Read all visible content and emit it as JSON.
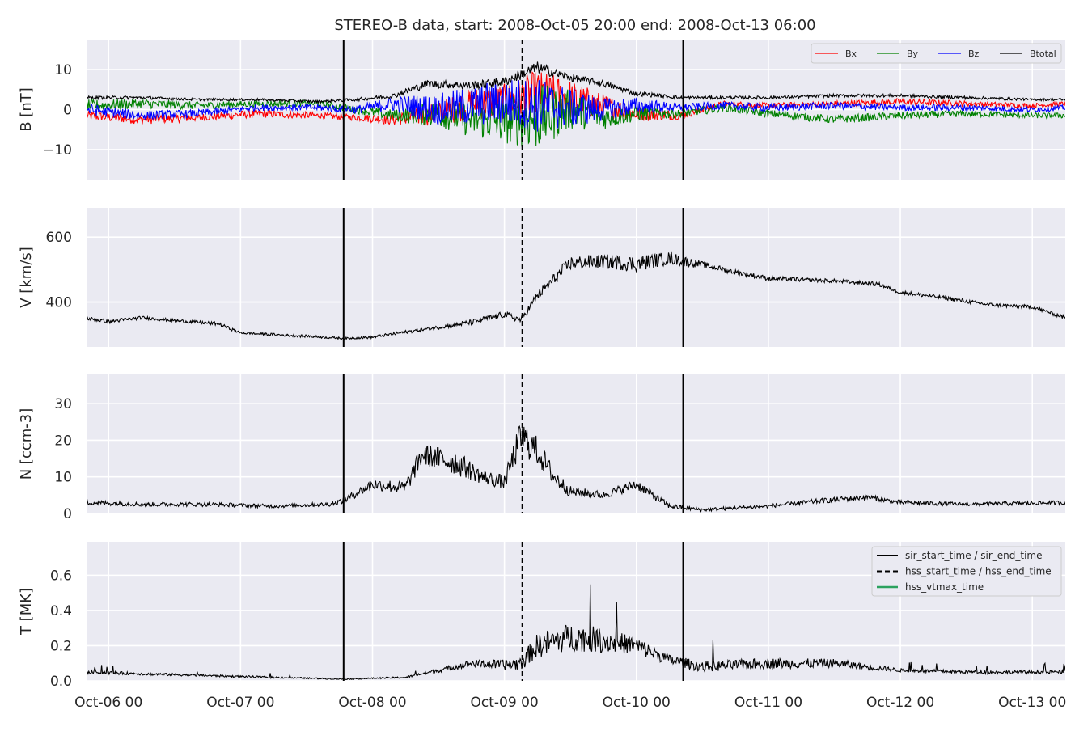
{
  "chart_data": {
    "type": "line",
    "title": "STEREO-B data, start: 2008-Oct-05 20:00  end: 2008-Oct-13 06:00",
    "x_range": [
      "2008-10-05 20:00",
      "2008-10-13 06:00"
    ],
    "x_ticks": [
      {
        "value": "2008-10-06 00:00",
        "label": "Oct-06 00"
      },
      {
        "value": "2008-10-07 00:00",
        "label": "Oct-07 00"
      },
      {
        "value": "2008-10-08 00:00",
        "label": "Oct-08 00"
      },
      {
        "value": "2008-10-09 00:00",
        "label": "Oct-09 00"
      },
      {
        "value": "2008-10-10 00:00",
        "label": "Oct-10 00"
      },
      {
        "value": "2008-10-11 00:00",
        "label": "Oct-11 00"
      },
      {
        "value": "2008-10-12 00:00",
        "label": "Oct-12 00"
      },
      {
        "value": "2008-10-13 00:00",
        "label": "Oct-13 00"
      }
    ],
    "event_lines": [
      {
        "name": "sir_start_time / sir_end_time",
        "style": "solid",
        "times": [
          "2008-10-07 18:45",
          "2008-10-10 08:30"
        ]
      },
      {
        "name": "hss_start_time / hss_end_time",
        "style": "dashed",
        "times": [
          "2008-10-09 03:15"
        ]
      },
      {
        "name": "hss_vtmax_time",
        "style": "solid",
        "color": "#2ca25f",
        "times": []
      }
    ],
    "panels": [
      {
        "id": "b",
        "ylabel": "B [nT]",
        "ylim": [
          -17.5,
          17.5
        ],
        "yticks": [
          -10,
          0,
          10
        ],
        "ytick_labels": [
          "−10",
          "0",
          "10"
        ],
        "legend": "top-right",
        "series": [
          {
            "name": "Bx",
            "color": "#ff0000",
            "x": [
              "2008-10-05 20:00",
              "2008-10-06 06:00",
              "2008-10-06 16:00",
              "2008-10-07 03:00",
              "2008-10-07 14:00",
              "2008-10-07 21:00",
              "2008-10-08 04:00",
              "2008-10-08 12:00",
              "2008-10-08 18:00",
              "2008-10-09 00:00",
              "2008-10-09 06:00",
              "2008-10-09 12:00",
              "2008-10-09 18:00",
              "2008-10-10 00:00",
              "2008-10-10 08:00",
              "2008-10-10 16:00",
              "2008-10-11 00:00",
              "2008-10-11 12:00",
              "2008-10-12 00:00",
              "2008-10-12 12:00",
              "2008-10-13 00:00",
              "2008-10-13 06:00"
            ],
            "y": [
              -1.5,
              -2.5,
              -2.0,
              -1.0,
              -1.5,
              -2.0,
              -2.5,
              -1.0,
              1.5,
              2.0,
              4.0,
              2.5,
              1.0,
              -1.0,
              -1.5,
              1.5,
              1.0,
              1.5,
              2.0,
              1.5,
              1.0,
              1.5
            ],
            "amp": [
              1.2,
              1.2,
              1.0,
              1.0,
              0.8,
              0.8,
              1.5,
              3.0,
              4.0,
              4.5,
              6.0,
              5.0,
              3.0,
              2.0,
              1.0,
              0.7,
              0.7,
              0.7,
              0.8,
              0.7,
              0.6,
              0.6
            ]
          },
          {
            "name": "By",
            "color": "#008000",
            "x": [
              "2008-10-05 20:00",
              "2008-10-06 06:00",
              "2008-10-06 16:00",
              "2008-10-07 03:00",
              "2008-10-07 14:00",
              "2008-10-07 21:00",
              "2008-10-08 04:00",
              "2008-10-08 12:00",
              "2008-10-08 18:00",
              "2008-10-09 00:00",
              "2008-10-09 06:00",
              "2008-10-09 12:00",
              "2008-10-09 18:00",
              "2008-10-10 00:00",
              "2008-10-10 08:00",
              "2008-10-10 16:00",
              "2008-10-11 00:00",
              "2008-10-11 12:00",
              "2008-10-12 00:00",
              "2008-10-12 12:00",
              "2008-10-13 00:00",
              "2008-10-13 06:00"
            ],
            "y": [
              1.0,
              1.5,
              1.0,
              1.5,
              1.5,
              0.0,
              -1.5,
              -1.0,
              -2.5,
              -3.0,
              -2.0,
              0.0,
              -2.0,
              -1.0,
              -1.0,
              0.5,
              -1.0,
              -2.5,
              -1.5,
              -1.0,
              -1.5,
              -1.5
            ],
            "amp": [
              1.5,
              1.2,
              1.0,
              0.8,
              0.8,
              1.0,
              1.5,
              3.5,
              4.5,
              5.5,
              8.5,
              5.0,
              3.0,
              2.0,
              1.0,
              1.0,
              1.0,
              1.0,
              1.0,
              0.8,
              0.7,
              0.7
            ]
          },
          {
            "name": "Bz",
            "color": "#0000ff",
            "x": [
              "2008-10-05 20:00",
              "2008-10-06 06:00",
              "2008-10-06 16:00",
              "2008-10-07 03:00",
              "2008-10-07 14:00",
              "2008-10-07 21:00",
              "2008-10-08 04:00",
              "2008-10-08 12:00",
              "2008-10-08 18:00",
              "2008-10-09 00:00",
              "2008-10-09 06:00",
              "2008-10-09 12:00",
              "2008-10-09 18:00",
              "2008-10-10 00:00",
              "2008-10-10 08:00",
              "2008-10-10 16:00",
              "2008-10-11 00:00",
              "2008-10-11 12:00",
              "2008-10-12 00:00",
              "2008-10-12 12:00",
              "2008-10-13 00:00",
              "2008-10-13 06:00"
            ],
            "y": [
              0.0,
              -1.5,
              -1.0,
              0.5,
              0.5,
              0.0,
              1.5,
              0.0,
              1.0,
              2.0,
              1.0,
              0.5,
              0.0,
              1.0,
              0.5,
              1.0,
              0.5,
              1.0,
              0.5,
              0.5,
              0.0,
              0.5
            ],
            "amp": [
              1.5,
              1.2,
              1.0,
              0.8,
              0.8,
              1.0,
              2.0,
              4.0,
              5.0,
              6.0,
              7.0,
              5.0,
              3.0,
              2.0,
              1.0,
              1.0,
              1.0,
              0.9,
              0.8,
              0.8,
              0.7,
              0.7
            ]
          },
          {
            "name": "Btotal",
            "color": "#000000",
            "x": [
              "2008-10-05 20:00",
              "2008-10-06 06:00",
              "2008-10-06 16:00",
              "2008-10-07 03:00",
              "2008-10-07 14:00",
              "2008-10-07 21:00",
              "2008-10-08 04:00",
              "2008-10-08 10:00",
              "2008-10-08 18:00",
              "2008-10-09 00:00",
              "2008-10-09 06:00",
              "2008-10-09 12:00",
              "2008-10-09 18:00",
              "2008-10-10 00:00",
              "2008-10-10 08:00",
              "2008-10-10 16:00",
              "2008-10-11 00:00",
              "2008-10-11 12:00",
              "2008-10-12 00:00",
              "2008-10-12 12:00",
              "2008-10-13 00:00",
              "2008-10-13 06:00"
            ],
            "y": [
              3.0,
              3.0,
              2.5,
              2.5,
              2.0,
              2.5,
              3.5,
              6.5,
              6.0,
              7.0,
              10.5,
              8.0,
              6.5,
              4.0,
              3.0,
              3.0,
              3.0,
              3.5,
              3.5,
              3.0,
              2.5,
              2.5
            ],
            "amp": [
              0.4,
              0.4,
              0.3,
              0.3,
              0.3,
              0.4,
              0.6,
              1.0,
              1.0,
              1.2,
              1.5,
              1.0,
              0.8,
              0.6,
              0.4,
              0.4,
              0.4,
              0.4,
              0.4,
              0.4,
              0.3,
              0.3
            ]
          }
        ]
      },
      {
        "id": "v",
        "ylabel": "V [km/s]",
        "ylim": [
          262,
          690
        ],
        "yticks": [
          400,
          600
        ],
        "ytick_labels": [
          "400",
          "600"
        ],
        "series": [
          {
            "name": "V",
            "color": "#000000",
            "x": [
              "2008-10-05 20:00",
              "2008-10-06 00:00",
              "2008-10-06 06:00",
              "2008-10-06 12:00",
              "2008-10-06 20:00",
              "2008-10-07 00:00",
              "2008-10-07 12:00",
              "2008-10-07 19:00",
              "2008-10-08 00:00",
              "2008-10-08 06:00",
              "2008-10-08 12:00",
              "2008-10-08 18:00",
              "2008-10-09 00:00",
              "2008-10-09 03:00",
              "2008-10-09 06:00",
              "2008-10-09 12:00",
              "2008-10-09 18:00",
              "2008-10-10 00:00",
              "2008-10-10 06:00",
              "2008-10-10 12:00",
              "2008-10-10 18:00",
              "2008-10-11 00:00",
              "2008-10-11 12:00",
              "2008-10-11 20:00",
              "2008-10-12 00:00",
              "2008-10-12 08:00",
              "2008-10-12 16:00",
              "2008-10-13 00:00",
              "2008-10-13 06:00"
            ],
            "y": [
              350,
              340,
              352,
              343,
              333,
              305,
              295,
              288,
              292,
              308,
              322,
              338,
              362,
              345,
              420,
              520,
              525,
              518,
              535,
              515,
              492,
              473,
              465,
              455,
              430,
              413,
              392,
              385,
              352
            ],
            "amp": [
              6,
              6,
              5,
              5,
              5,
              4,
              4,
              3,
              4,
              5,
              6,
              8,
              10,
              10,
              15,
              22,
              22,
              25,
              20,
              10,
              8,
              7,
              6,
              6,
              6,
              6,
              6,
              6,
              6
            ]
          }
        ]
      },
      {
        "id": "n",
        "ylabel": "N [ccm-3]",
        "ylim": [
          0,
          38
        ],
        "yticks": [
          0,
          10,
          20,
          30
        ],
        "ytick_labels": [
          "0",
          "10",
          "20",
          "30"
        ],
        "series": [
          {
            "name": "N",
            "color": "#000000",
            "x": [
              "2008-10-05 20:00",
              "2008-10-06 06:00",
              "2008-10-06 18:00",
              "2008-10-07 06:00",
              "2008-10-07 16:00",
              "2008-10-07 18:45",
              "2008-10-08 00:00",
              "2008-10-08 06:00",
              "2008-10-08 09:00",
              "2008-10-08 15:00",
              "2008-10-08 20:00",
              "2008-10-09 00:00",
              "2008-10-09 03:00",
              "2008-10-09 06:00",
              "2008-10-09 09:00",
              "2008-10-09 12:00",
              "2008-10-09 18:00",
              "2008-10-10 00:00",
              "2008-10-10 06:00",
              "2008-10-10 12:00",
              "2008-10-11 00:00",
              "2008-10-11 10:00",
              "2008-10-11 18:00",
              "2008-10-12 00:00",
              "2008-10-12 12:00",
              "2008-10-13 06:00"
            ],
            "y": [
              3.0,
              2.5,
              2.5,
              2.0,
              2.5,
              3.5,
              8.0,
              7.0,
              16.0,
              14.0,
              10.0,
              8.5,
              21.0,
              17.0,
              10.0,
              6.0,
              5.0,
              8.0,
              2.0,
              1.0,
              2.0,
              3.5,
              4.5,
              3.0,
              2.5,
              3.0
            ],
            "amp": [
              0.7,
              0.6,
              0.6,
              0.5,
              0.6,
              0.8,
              1.5,
              2.0,
              3.0,
              3.5,
              2.0,
              2.0,
              5.0,
              4.0,
              2.5,
              1.5,
              1.0,
              1.5,
              0.7,
              0.5,
              0.5,
              0.7,
              0.7,
              0.6,
              0.5,
              0.6
            ]
          }
        ]
      },
      {
        "id": "t",
        "ylabel": "T [MK]",
        "ylim": [
          0,
          0.79
        ],
        "yticks": [
          0.0,
          0.2,
          0.4,
          0.6
        ],
        "ytick_labels": [
          "0.0",
          "0.2",
          "0.4",
          "0.6"
        ],
        "legend": "top-right",
        "series": [
          {
            "name": "T",
            "color": "#000000",
            "x": [
              "2008-10-05 20:00",
              "2008-10-06 06:00",
              "2008-10-06 18:00",
              "2008-10-07 06:00",
              "2008-10-07 18:45",
              "2008-10-08 06:00",
              "2008-10-08 18:00",
              "2008-10-09 00:00",
              "2008-10-09 03:00",
              "2008-10-09 06:00",
              "2008-10-09 12:00",
              "2008-10-09 18:00",
              "2008-10-10 00:00",
              "2008-10-10 06:00",
              "2008-10-10 12:00",
              "2008-10-11 00:00",
              "2008-10-11 12:00",
              "2008-10-12 00:00",
              "2008-10-12 12:00",
              "2008-10-13 06:00"
            ],
            "y": [
              0.05,
              0.04,
              0.03,
              0.02,
              0.01,
              0.02,
              0.1,
              0.09,
              0.1,
              0.2,
              0.25,
              0.23,
              0.2,
              0.12,
              0.08,
              0.1,
              0.1,
              0.06,
              0.05,
              0.05
            ],
            "amp": [
              0.01,
              0.008,
              0.006,
              0.005,
              0.003,
              0.005,
              0.02,
              0.03,
              0.04,
              0.07,
              0.08,
              0.07,
              0.05,
              0.03,
              0.03,
              0.03,
              0.025,
              0.01,
              0.01,
              0.01
            ]
          }
        ]
      }
    ],
    "legend_t": [
      {
        "label": "sir_start_time / sir_end_time",
        "style": "solid",
        "color": "#000000"
      },
      {
        "label": "hss_start_time / hss_end_time",
        "style": "dashed",
        "color": "#000000"
      },
      {
        "label": "hss_vtmax_time",
        "style": "solid",
        "color": "#2ca25f"
      }
    ]
  }
}
